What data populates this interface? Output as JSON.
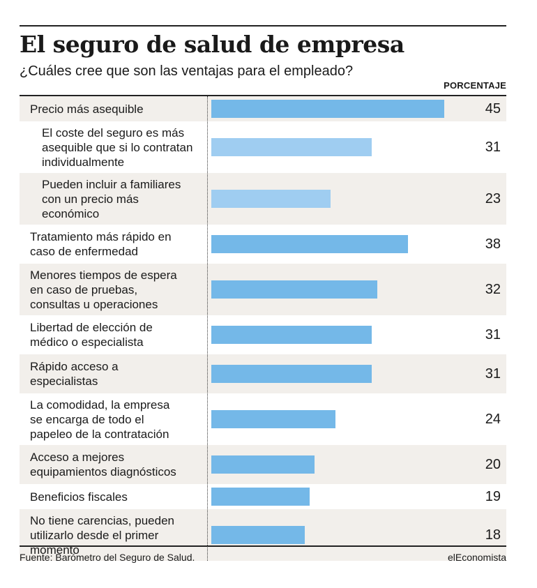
{
  "title": "El seguro de salud de empresa",
  "subtitle": "¿Cuáles cree que son las ventajas para el empleado?",
  "column_header": "PORCENTAJE",
  "footer": {
    "source": "Fuente: Barómetro del Seguro de Salud.",
    "brand": "elEconomista"
  },
  "colors": {
    "bar_main": "#74b8e8",
    "bar_sub": "#9fcdf1",
    "row_shade": "#f2efeb"
  },
  "chart_data": {
    "type": "bar",
    "orientation": "horizontal",
    "title": "El seguro de salud de empresa",
    "subtitle": "¿Cuáles cree que son las ventajas para el empleado?",
    "value_label": "PORCENTAJE",
    "xlim": [
      0,
      45
    ],
    "grid": false,
    "legend": "none",
    "categories": [
      "Precio más asequible",
      "El coste del seguro es más asequible que si lo contratan individualmente",
      "Pueden incluir a familiares con un precio más económico",
      "Tratamiento más rápido en caso de enfermedad",
      "Menores tiempos de espera en caso de pruebas, consultas u operaciones",
      "Libertad de elección de médico o especialista",
      "Rápido acceso a especialistas",
      "La comodidad, la empresa se encarga de todo el papeleo de la contratación",
      "Acceso a mejores equipamientos diagnósticos",
      "Beneficios fiscales",
      "No tiene carencias, pueden utilizarlo desde el primer momento"
    ],
    "label_lines": [
      [
        "Precio más asequible"
      ],
      [
        "El coste del seguro es más",
        "asequible que si lo contratan",
        "individualmente"
      ],
      [
        "Pueden incluir a familiares",
        "con un precio más",
        "económico"
      ],
      [
        "Tratamiento más rápido en",
        "caso de enfermedad"
      ],
      [
        "Menores tiempos de espera",
        "en caso de pruebas,",
        "consultas u operaciones"
      ],
      [
        "Libertad de elección de",
        "médico o especialista"
      ],
      [
        "Rápido acceso a",
        "especialistas"
      ],
      [
        "La comodidad, la empresa",
        "se encarga de todo el",
        "papeleo de la contratación"
      ],
      [
        "Acceso a mejores",
        "equipamientos diagnósticos"
      ],
      [
        "Beneficios fiscales"
      ],
      [
        "No tiene carencias, pueden",
        "utilizarlo desde el primer",
        "momento"
      ]
    ],
    "sub_item": [
      false,
      true,
      true,
      false,
      false,
      false,
      false,
      false,
      false,
      false,
      false
    ],
    "values": [
      45,
      31,
      23,
      38,
      32,
      31,
      31,
      24,
      20,
      19,
      18
    ]
  }
}
